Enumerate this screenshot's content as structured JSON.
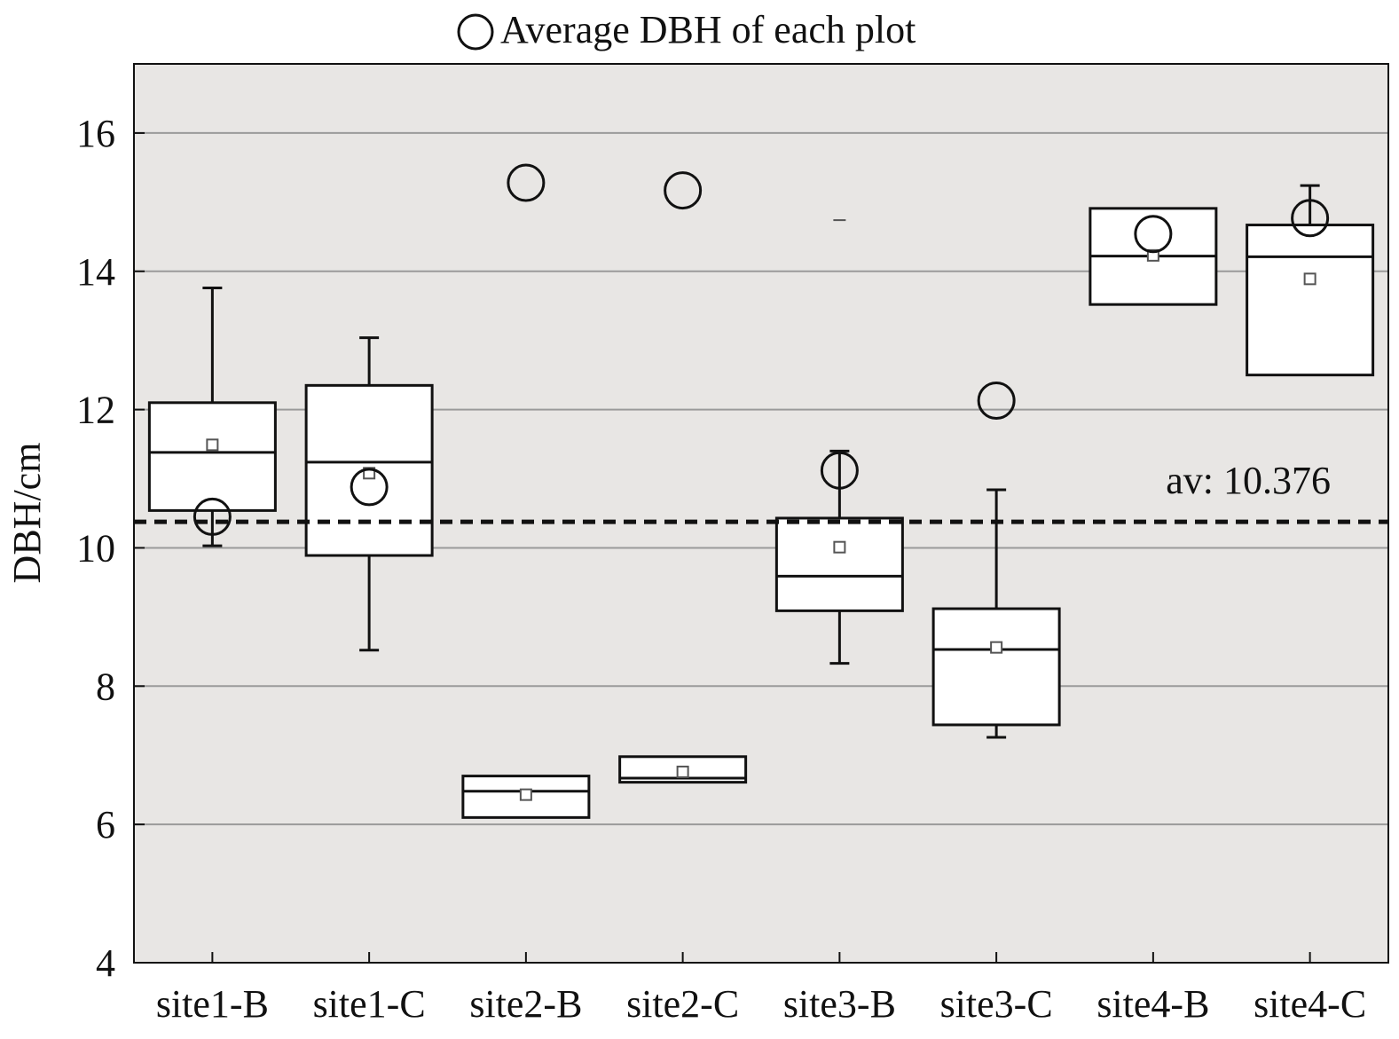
{
  "chart_data": {
    "type": "box",
    "legend": {
      "label": "Average DBH of each plot",
      "marker": "circle",
      "placement": "top-center"
    },
    "ylabel": "DBH/cm",
    "xlabel": "",
    "ylim": [
      4,
      17
    ],
    "yticks": [
      4,
      6,
      8,
      10,
      12,
      14,
      16
    ],
    "grid": true,
    "background": "#e8e6e4",
    "reference_line": {
      "value": 10.376,
      "label": "av: 10.376",
      "style": "dashed"
    },
    "categories": [
      "site1-B",
      "site1-C",
      "site2-B",
      "site2-C",
      "site3-B",
      "site3-C",
      "site4-B",
      "site4-C"
    ],
    "boxes": [
      {
        "whisker_high": 13.76,
        "q3": 12.1,
        "median": 11.38,
        "q1": 10.54,
        "whisker_low": 10.03,
        "mean": 11.49,
        "plot_average": 10.45
      },
      {
        "whisker_high": 13.04,
        "q3": 12.35,
        "median": 11.24,
        "q1": 9.89,
        "whisker_low": 8.52,
        "mean": 11.08,
        "plot_average": 10.88
      },
      {
        "whisker_high": null,
        "q3": 6.7,
        "median": 6.48,
        "q1": 6.1,
        "whisker_low": null,
        "mean": 6.43,
        "plot_average": 15.28
      },
      {
        "whisker_high": null,
        "q3": 6.98,
        "median": 6.67,
        "q1": 6.61,
        "whisker_low": null,
        "mean": 6.76,
        "plot_average": 15.17
      },
      {
        "whisker_high": 11.4,
        "q3": 10.43,
        "median": 9.59,
        "q1": 9.09,
        "whisker_low": 8.33,
        "mean": 10.01,
        "plot_average": 11.12,
        "outlier": 14.74
      },
      {
        "whisker_high": 10.84,
        "q3": 9.12,
        "median": 8.53,
        "q1": 7.44,
        "whisker_low": 7.26,
        "mean": 8.56,
        "plot_average": 12.13
      },
      {
        "whisker_high": null,
        "q3": 14.91,
        "median": 14.22,
        "q1": 13.52,
        "whisker_low": null,
        "mean": 14.23,
        "plot_average": 14.54
      },
      {
        "whisker_high": 15.24,
        "q3": 14.67,
        "median": 14.21,
        "q1": 12.5,
        "whisker_low": null,
        "mean": 13.89,
        "plot_average": 14.77
      }
    ]
  }
}
